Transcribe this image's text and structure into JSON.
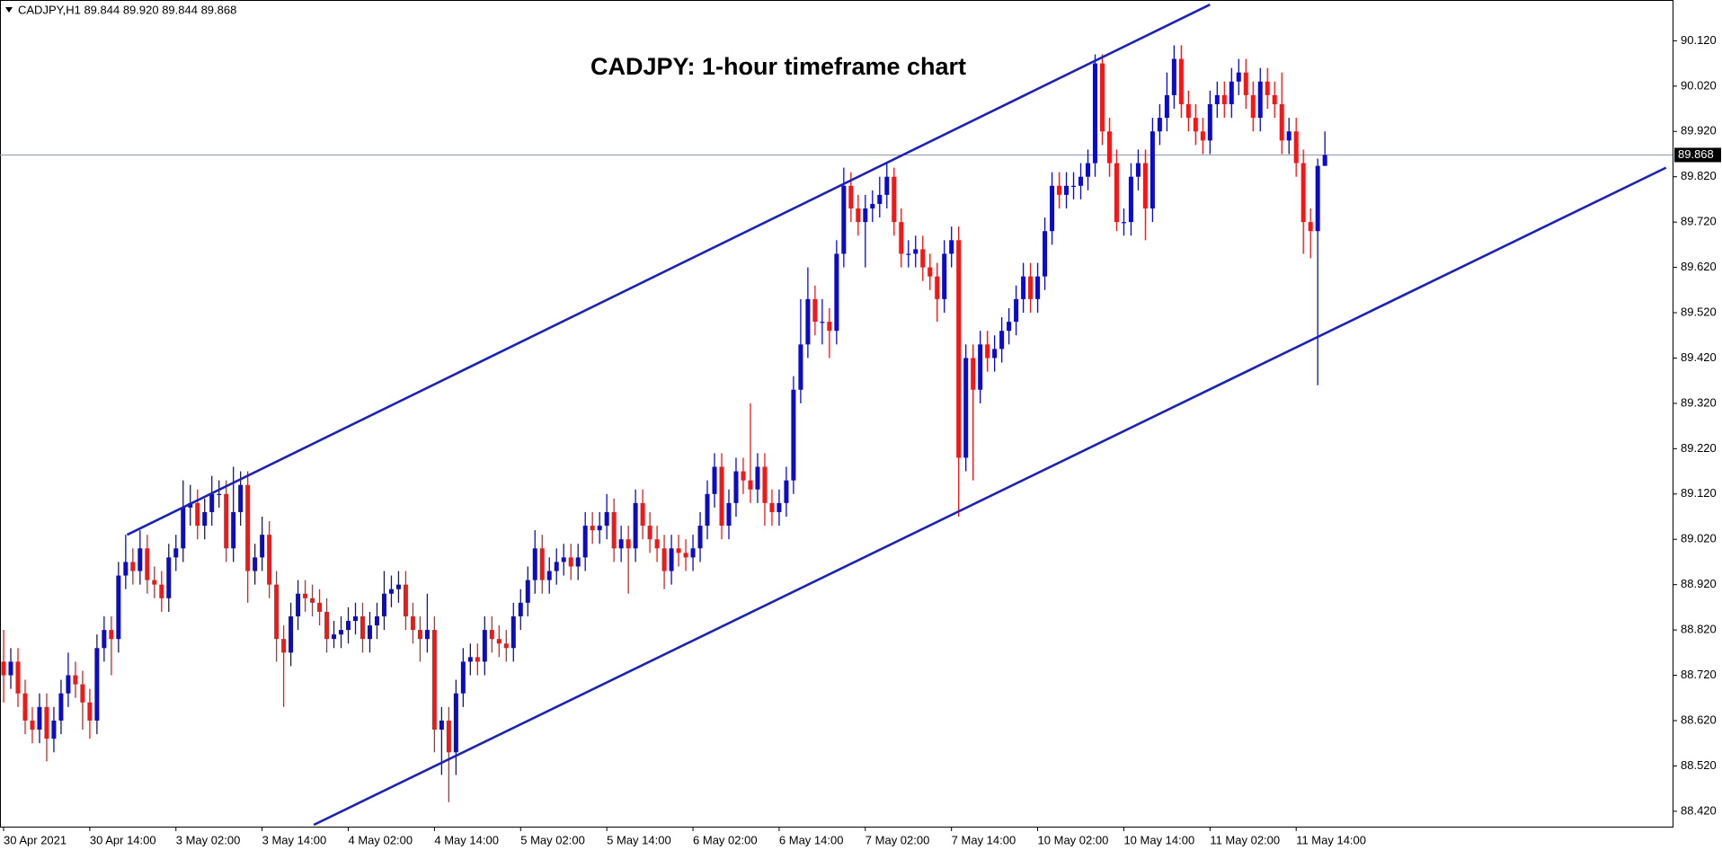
{
  "chart_data": {
    "type": "candlestick",
    "header": "CADJPY,H1  89.844 89.920 89.844 89.868",
    "title": "CADJPY: 1-hour timeframe chart",
    "up_color": "#0c0cc8",
    "down_color": "#f21818",
    "categories": [
      "30 Apr 2021",
      null,
      null,
      null,
      null,
      null,
      null,
      null,
      null,
      null,
      null,
      null,
      "30 Apr 14:00",
      null,
      null,
      null,
      null,
      null,
      null,
      null,
      null,
      null,
      null,
      null,
      "3 May 02:00",
      null,
      null,
      null,
      null,
      null,
      null,
      null,
      null,
      null,
      null,
      null,
      "3 May 14:00",
      null,
      null,
      null,
      null,
      null,
      null,
      null,
      null,
      null,
      null,
      null,
      "4 May 02:00",
      null,
      null,
      null,
      null,
      null,
      null,
      null,
      null,
      null,
      null,
      null,
      "4 May 14:00",
      null,
      null,
      null,
      null,
      null,
      null,
      null,
      null,
      null,
      null,
      null,
      "5 May 02:00",
      null,
      null,
      null,
      null,
      null,
      null,
      null,
      null,
      null,
      null,
      null,
      "5 May 14:00",
      null,
      null,
      null,
      null,
      null,
      null,
      null,
      null,
      null,
      null,
      null,
      "6 May 02:00",
      null,
      null,
      null,
      null,
      null,
      null,
      null,
      null,
      null,
      null,
      null,
      "6 May 14:00",
      null,
      null,
      null,
      null,
      null,
      null,
      null,
      null,
      null,
      null,
      null,
      "7 May 02:00",
      null,
      null,
      null,
      null,
      null,
      null,
      null,
      null,
      null,
      null,
      null,
      "7 May 14:00",
      null,
      null,
      null,
      null,
      null,
      null,
      null,
      null,
      null,
      null,
      null,
      "10 May 02:00",
      null,
      null,
      null,
      null,
      null,
      null,
      null,
      null,
      null,
      null,
      null,
      "10 May 14:00",
      null,
      null,
      null,
      null,
      null,
      null,
      null,
      null,
      null,
      null,
      null,
      "11 May 02:00",
      null,
      null,
      null,
      null,
      null,
      null,
      null,
      null,
      null,
      null,
      null,
      "11 May 14:00",
      null,
      null,
      null,
      null
    ],
    "open": [
      88.75,
      88.72,
      88.75,
      88.68,
      88.62,
      88.6,
      88.65,
      88.58,
      88.62,
      88.68,
      88.72,
      88.7,
      88.66,
      88.62,
      88.78,
      88.82,
      88.8,
      88.94,
      88.97,
      88.95,
      89.0,
      88.93,
      88.92,
      88.89,
      88.98,
      89.0,
      89.09,
      89.1,
      89.05,
      89.08,
      89.12,
      89.12,
      89.0,
      89.08,
      89.14,
      88.95,
      88.98,
      89.03,
      88.92,
      88.8,
      88.77,
      88.85,
      88.9,
      88.89,
      88.88,
      88.86,
      88.8,
      88.81,
      88.82,
      88.84,
      88.85,
      88.8,
      88.83,
      88.85,
      88.9,
      88.91,
      88.92,
      88.85,
      88.82,
      88.8,
      88.82,
      88.6,
      88.62,
      88.55,
      88.68,
      88.75,
      88.76,
      88.75,
      88.82,
      88.8,
      88.79,
      88.78,
      88.85,
      88.88,
      88.93,
      89.0,
      88.93,
      88.95,
      88.97,
      88.98,
      88.96,
      88.98,
      89.05,
      89.04,
      89.05,
      89.08,
      89.0,
      89.02,
      89.0,
      89.1,
      89.05,
      89.02,
      89.0,
      88.95,
      89.0,
      88.99,
      88.98,
      89.0,
      89.05,
      89.12,
      89.18,
      89.05,
      89.1,
      89.17,
      89.15,
      89.13,
      89.18,
      89.1,
      89.08,
      89.1,
      89.15,
      89.35,
      89.45,
      89.55,
      89.5,
      89.5,
      89.48,
      89.65,
      89.8,
      89.75,
      89.72,
      89.75,
      89.76,
      89.78,
      89.82,
      89.72,
      89.65,
      89.65,
      89.66,
      89.62,
      89.6,
      89.55,
      89.65,
      89.68,
      89.2,
      89.42,
      89.35,
      89.45,
      89.42,
      89.44,
      89.48,
      89.5,
      89.55,
      89.6,
      89.55,
      89.6,
      89.7,
      89.8,
      89.78,
      89.8,
      89.8,
      89.82,
      89.85,
      90.07,
      89.92,
      89.85,
      89.72,
      89.72,
      89.82,
      89.85,
      89.75,
      89.92,
      89.95,
      90.0,
      90.08,
      89.98,
      89.95,
      89.92,
      89.9,
      89.98,
      90.0,
      89.98,
      90.03,
      90.05,
      90.0,
      89.95,
      90.03,
      90.0,
      89.98,
      89.9,
      89.92,
      89.85,
      89.72,
      89.7,
      89.844
    ],
    "high": [
      88.82,
      88.78,
      88.78,
      88.71,
      88.65,
      88.68,
      88.68,
      88.65,
      88.71,
      88.77,
      88.75,
      88.73,
      88.69,
      88.81,
      88.85,
      88.85,
      88.97,
      89.03,
      89.0,
      89.04,
      89.03,
      88.96,
      88.95,
      89.01,
      89.03,
      89.15,
      89.14,
      89.13,
      89.11,
      89.16,
      89.15,
      89.15,
      89.18,
      89.17,
      89.17,
      89.01,
      89.07,
      89.06,
      88.95,
      88.83,
      88.88,
      88.93,
      88.93,
      88.92,
      88.91,
      88.89,
      88.84,
      88.85,
      88.87,
      88.88,
      88.88,
      88.86,
      88.88,
      88.95,
      88.94,
      88.95,
      88.95,
      88.88,
      88.85,
      88.9,
      88.85,
      88.65,
      88.65,
      88.71,
      88.78,
      88.79,
      88.79,
      88.85,
      88.85,
      88.83,
      88.82,
      88.88,
      88.91,
      88.96,
      89.04,
      89.03,
      88.98,
      89.0,
      89.01,
      89.01,
      89.01,
      89.08,
      89.08,
      89.08,
      89.12,
      89.11,
      89.05,
      89.05,
      89.13,
      89.13,
      89.08,
      89.05,
      89.03,
      89.03,
      89.03,
      89.02,
      89.03,
      89.08,
      89.15,
      89.21,
      89.21,
      89.13,
      89.2,
      89.2,
      89.32,
      89.21,
      89.21,
      89.13,
      89.13,
      89.18,
      89.38,
      89.55,
      89.62,
      89.58,
      89.55,
      89.53,
      89.68,
      89.84,
      89.83,
      89.78,
      89.78,
      89.79,
      89.82,
      89.85,
      89.84,
      89.75,
      89.68,
      89.69,
      89.69,
      89.65,
      89.63,
      89.68,
      89.71,
      89.71,
      89.45,
      89.45,
      89.48,
      89.48,
      89.47,
      89.51,
      89.53,
      89.58,
      89.63,
      89.63,
      89.63,
      89.73,
      89.83,
      89.83,
      89.83,
      89.83,
      89.85,
      89.88,
      90.09,
      90.09,
      89.95,
      89.88,
      89.75,
      89.85,
      89.88,
      89.88,
      89.95,
      89.98,
      90.05,
      90.11,
      90.11,
      90.01,
      89.98,
      89.95,
      90.01,
      90.03,
      90.03,
      90.06,
      90.08,
      90.08,
      90.03,
      90.06,
      90.06,
      90.03,
      90.05,
      89.95,
      89.95,
      89.88,
      89.75,
      89.86,
      89.92
    ],
    "low": [
      88.66,
      88.69,
      88.65,
      88.59,
      88.57,
      88.57,
      88.53,
      88.55,
      88.59,
      88.65,
      88.67,
      88.6,
      88.58,
      88.59,
      88.75,
      88.72,
      88.77,
      88.91,
      88.92,
      88.92,
      88.9,
      88.89,
      88.86,
      88.86,
      88.95,
      88.97,
      89.05,
      89.02,
      89.02,
      89.05,
      89.09,
      88.97,
      88.97,
      89.05,
      88.88,
      88.92,
      88.95,
      88.89,
      88.75,
      88.65,
      88.74,
      88.82,
      88.86,
      88.85,
      88.83,
      88.77,
      88.78,
      88.78,
      88.79,
      88.81,
      88.77,
      88.77,
      88.8,
      88.82,
      88.87,
      88.88,
      88.82,
      88.79,
      88.75,
      88.77,
      88.55,
      88.5,
      88.44,
      88.5,
      88.65,
      88.72,
      88.72,
      88.72,
      88.77,
      88.76,
      88.75,
      88.75,
      88.82,
      88.85,
      88.9,
      88.9,
      88.9,
      88.92,
      88.94,
      88.93,
      88.93,
      88.95,
      89.01,
      89.01,
      89.02,
      88.97,
      88.97,
      88.9,
      88.97,
      89.02,
      88.99,
      88.97,
      88.91,
      88.92,
      88.96,
      88.95,
      88.95,
      88.97,
      89.02,
      89.09,
      89.02,
      89.02,
      89.07,
      89.12,
      89.1,
      89.1,
      89.05,
      89.05,
      89.05,
      89.07,
      89.12,
      89.32,
      89.42,
      89.47,
      89.45,
      89.42,
      89.45,
      89.62,
      89.72,
      89.69,
      89.62,
      89.72,
      89.73,
      89.75,
      89.69,
      89.62,
      89.62,
      89.62,
      89.59,
      89.57,
      89.5,
      89.52,
      89.62,
      89.07,
      89.17,
      89.15,
      89.32,
      89.39,
      89.39,
      89.41,
      89.45,
      89.47,
      89.52,
      89.52,
      89.52,
      89.57,
      89.67,
      89.75,
      89.75,
      89.77,
      89.77,
      89.79,
      89.82,
      89.89,
      89.82,
      89.7,
      89.69,
      89.69,
      89.79,
      89.68,
      89.72,
      89.89,
      89.92,
      89.97,
      89.95,
      89.92,
      89.89,
      89.87,
      89.87,
      89.95,
      89.95,
      89.95,
      90.0,
      89.97,
      89.92,
      89.92,
      89.97,
      89.95,
      89.87,
      89.87,
      89.82,
      89.65,
      89.64,
      89.36,
      89.844
    ],
    "close": [
      88.72,
      88.75,
      88.68,
      88.62,
      88.6,
      88.65,
      88.58,
      88.62,
      88.68,
      88.72,
      88.7,
      88.66,
      88.62,
      88.78,
      88.82,
      88.8,
      88.94,
      88.97,
      88.95,
      89.0,
      88.93,
      88.92,
      88.89,
      88.98,
      89.0,
      89.09,
      89.1,
      89.05,
      89.08,
      89.12,
      89.12,
      89.0,
      89.08,
      89.14,
      88.95,
      88.98,
      89.03,
      88.92,
      88.8,
      88.77,
      88.85,
      88.9,
      88.89,
      88.88,
      88.86,
      88.8,
      88.81,
      88.82,
      88.84,
      88.85,
      88.8,
      88.83,
      88.85,
      88.9,
      88.91,
      88.92,
      88.85,
      88.82,
      88.8,
      88.82,
      88.6,
      88.62,
      88.55,
      88.68,
      88.75,
      88.76,
      88.75,
      88.82,
      88.8,
      88.79,
      88.78,
      88.85,
      88.88,
      88.93,
      89.0,
      88.93,
      88.95,
      88.97,
      88.98,
      88.96,
      88.98,
      89.05,
      89.04,
      89.05,
      89.08,
      89.0,
      89.02,
      89.0,
      89.1,
      89.05,
      89.02,
      89.0,
      88.95,
      89.0,
      88.99,
      88.98,
      89.0,
      89.05,
      89.12,
      89.18,
      89.05,
      89.1,
      89.17,
      89.15,
      89.13,
      89.18,
      89.1,
      89.08,
      89.1,
      89.15,
      89.35,
      89.45,
      89.55,
      89.5,
      89.5,
      89.48,
      89.65,
      89.8,
      89.75,
      89.72,
      89.75,
      89.76,
      89.78,
      89.82,
      89.72,
      89.65,
      89.65,
      89.66,
      89.62,
      89.6,
      89.55,
      89.65,
      89.68,
      89.2,
      89.42,
      89.35,
      89.45,
      89.42,
      89.44,
      89.48,
      89.5,
      89.55,
      89.6,
      89.55,
      89.6,
      89.7,
      89.8,
      89.78,
      89.8,
      89.8,
      89.82,
      89.85,
      90.07,
      89.92,
      89.85,
      89.72,
      89.72,
      89.82,
      89.85,
      89.75,
      89.92,
      89.95,
      90.0,
      90.08,
      89.98,
      89.95,
      89.92,
      89.9,
      89.98,
      90.0,
      89.98,
      90.03,
      90.05,
      90.0,
      89.95,
      90.03,
      90.0,
      89.98,
      89.9,
      89.92,
      89.85,
      89.72,
      89.7,
      89.844,
      89.868
    ],
    "ylim": [
      88.386,
      90.206
    ],
    "yticks": [
      {
        "value": 90.12,
        "label": "90.120"
      },
      {
        "value": 90.02,
        "label": "90.020"
      },
      {
        "value": 89.92,
        "label": "89.920"
      },
      {
        "value": 89.82,
        "label": "89.820"
      },
      {
        "value": 89.72,
        "label": "89.720"
      },
      {
        "value": 89.62,
        "label": "89.620"
      },
      {
        "value": 89.52,
        "label": "89.520"
      },
      {
        "value": 89.42,
        "label": "89.420"
      },
      {
        "value": 89.32,
        "label": "89.320"
      },
      {
        "value": 89.22,
        "label": "89.220"
      },
      {
        "value": 89.12,
        "label": "89.120"
      },
      {
        "value": 89.02,
        "label": "89.020"
      },
      {
        "value": 88.92,
        "label": "88.920"
      },
      {
        "value": 88.82,
        "label": "88.820"
      },
      {
        "value": 88.72,
        "label": "88.720"
      },
      {
        "value": 88.62,
        "label": "88.620"
      },
      {
        "value": 88.52,
        "label": "88.520"
      },
      {
        "value": 88.42,
        "label": "88.420"
      }
    ],
    "current_price": {
      "value": 89.868,
      "label": "89.868"
    },
    "trendlines": [
      {
        "color": "#1c22b4",
        "x": [
          17.2,
          168
        ],
        "y": [
          89.03,
          90.2
        ]
      },
      {
        "color": "#1c22b4",
        "x": [
          43.2,
          231.5
        ],
        "y": [
          88.39,
          89.84
        ]
      }
    ],
    "grid": false
  }
}
